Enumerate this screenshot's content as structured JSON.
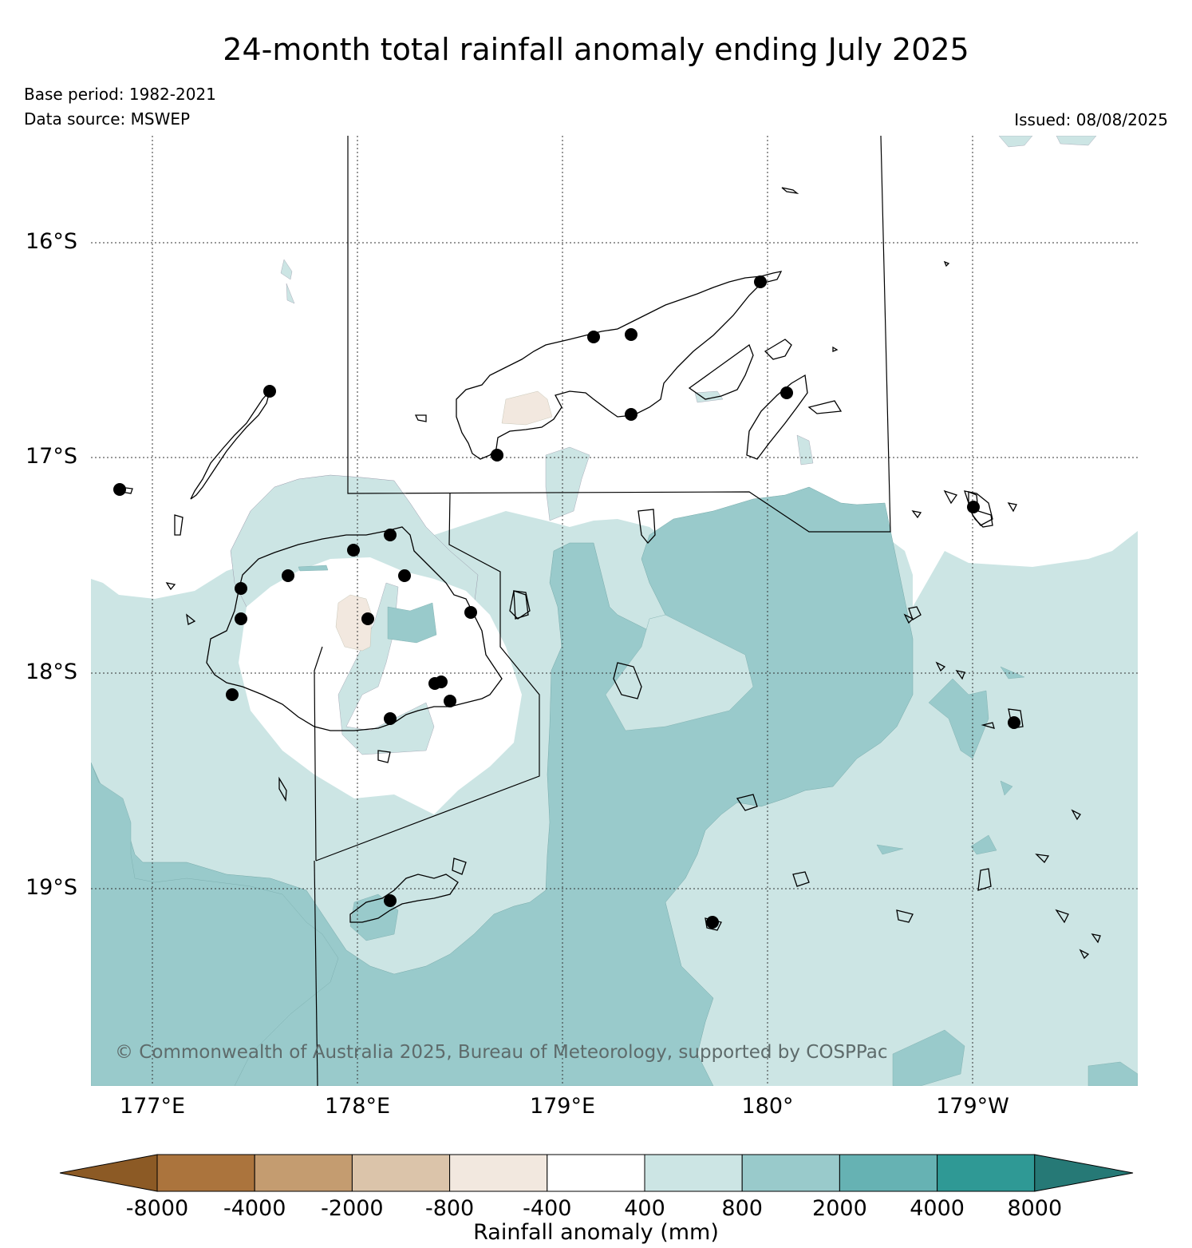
{
  "title": "24-month total rainfall anomaly ending July 2025",
  "base_period": "Base period: 1982-2021",
  "data_source": "Data source: MSWEP",
  "issued": "Issued: 08/08/2025",
  "copyright": "© Commonwealth of Australia 2025, Bureau of Meteorology, supported by COSPPac",
  "latitude_labels": [
    "16°S",
    "17°S",
    "18°S",
    "19°S"
  ],
  "longitude_labels": [
    "177°E",
    "178°E",
    "179°E",
    "180°",
    "179°W"
  ],
  "colorbar": {
    "title": "Rainfall anomaly (mm)",
    "tick_labels": [
      "-8000",
      "-4000",
      "-2000",
      "-800",
      "-400",
      "400",
      "800",
      "2000",
      "4000",
      "8000"
    ],
    "colors": [
      "#8c5a25",
      "#ab743d",
      "#c49c70",
      "#dbc4aa",
      "#f2e8df",
      "#ffffff",
      "#cce5e4",
      "#99cacb",
      "#66b2b3",
      "#2f9995",
      "#267976"
    ]
  },
  "map": {
    "region": "Fiji",
    "station_markers": 26
  }
}
